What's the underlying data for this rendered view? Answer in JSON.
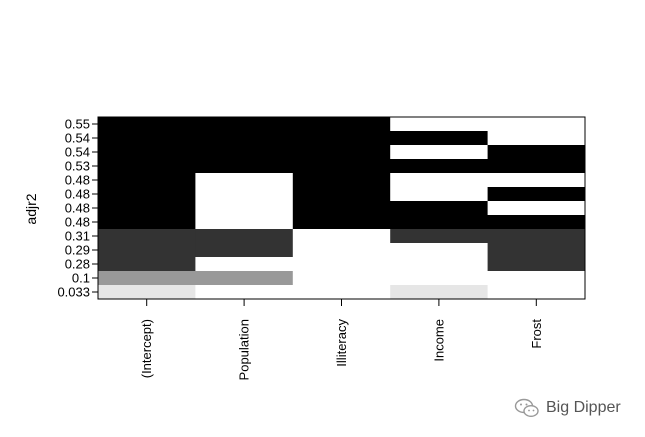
{
  "chart_data": {
    "type": "heatmap",
    "ylabel": "adjr2",
    "xlabel": "",
    "title": "",
    "x_labels": [
      "(Intercept)",
      "Population",
      "Illiteracy",
      "Income",
      "Frost"
    ],
    "y_labels": [
      "0.55",
      "0.54",
      "0.54",
      "0.53",
      "0.48",
      "0.48",
      "0.48",
      "0.48",
      "0.31",
      "0.29",
      "0.28",
      "0.1",
      "0.033"
    ],
    "scale_colors": {
      "0.033": "#e6e6e6",
      "0.1": "#999999",
      "0.28": "#333333",
      "0.29": "#333333",
      "0.31": "#333333",
      "0.48": "#000000",
      "0.53": "#000000",
      "0.54": "#000000",
      "0.55": "#000000",
      "empty": "#ffffff"
    },
    "rows": [
      {
        "adjr2": "0.55",
        "included": [
          1,
          1,
          1,
          0,
          0
        ]
      },
      {
        "adjr2": "0.54",
        "included": [
          1,
          1,
          1,
          1,
          0
        ]
      },
      {
        "adjr2": "0.54",
        "included": [
          1,
          1,
          1,
          0,
          1
        ]
      },
      {
        "adjr2": "0.53",
        "included": [
          1,
          1,
          1,
          1,
          1
        ]
      },
      {
        "adjr2": "0.48",
        "included": [
          1,
          0,
          1,
          0,
          0
        ]
      },
      {
        "adjr2": "0.48",
        "included": [
          1,
          0,
          1,
          0,
          1
        ]
      },
      {
        "adjr2": "0.48",
        "included": [
          1,
          0,
          1,
          1,
          0
        ]
      },
      {
        "adjr2": "0.48",
        "included": [
          1,
          0,
          1,
          1,
          1
        ]
      },
      {
        "adjr2": "0.31",
        "included": [
          1,
          1,
          0,
          1,
          1
        ]
      },
      {
        "adjr2": "0.29",
        "included": [
          1,
          1,
          0,
          0,
          1
        ]
      },
      {
        "adjr2": "0.28",
        "included": [
          1,
          0,
          0,
          0,
          1
        ]
      },
      {
        "adjr2": "0.1",
        "included": [
          1,
          1,
          0,
          0,
          0
        ]
      },
      {
        "adjr2": "0.033",
        "included": [
          1,
          0,
          0,
          1,
          0
        ]
      }
    ]
  },
  "watermark": {
    "text": "Big Dipper",
    "icon": "wechat-icon"
  }
}
